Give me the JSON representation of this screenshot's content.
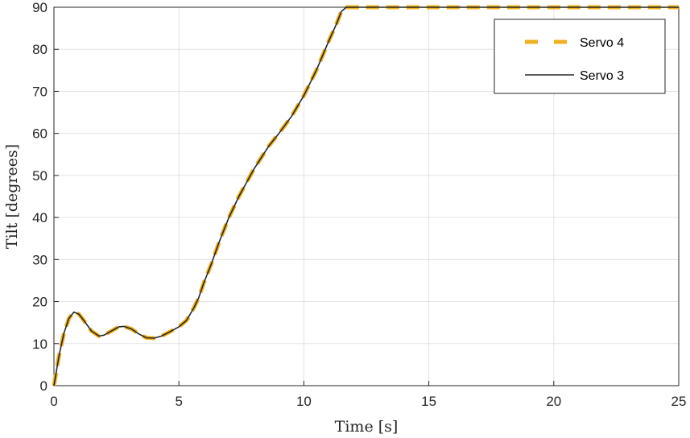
{
  "chart_data": {
    "type": "line",
    "xlabel": "Time [s]",
    "ylabel": "Tilt [degrees]",
    "xlim": [
      0,
      25
    ],
    "ylim": [
      0,
      90
    ],
    "x_ticks": [
      "0",
      "5",
      "10",
      "15",
      "20",
      "25"
    ],
    "y_ticks": [
      "0",
      "10",
      "20",
      "30",
      "40",
      "50",
      "60",
      "70",
      "80",
      "90"
    ],
    "grid": true,
    "legend_position": "top-right",
    "series": [
      {
        "name": "Servo 4",
        "color": "#EDB120",
        "style": "dashed",
        "x": [
          0,
          0.2,
          0.4,
          0.6,
          0.8,
          1.0,
          1.2,
          1.5,
          1.8,
          2.0,
          2.3,
          2.6,
          2.8,
          3.1,
          3.4,
          3.7,
          4.0,
          4.3,
          4.6,
          5.0,
          5.3,
          5.6,
          5.8,
          6.0,
          6.3,
          6.6,
          7.0,
          7.4,
          8.0,
          8.6,
          9.0,
          9.5,
          10.0,
          10.5,
          11.0,
          11.3,
          11.5,
          11.7,
          12,
          14,
          16,
          18,
          20,
          22,
          24,
          25
        ],
        "y": [
          0,
          7,
          12.5,
          16,
          17.5,
          17,
          15.5,
          13,
          11.8,
          12,
          13,
          14,
          14.1,
          13.5,
          12.3,
          11.4,
          11.3,
          11.8,
          12.7,
          14,
          15.5,
          18.5,
          21,
          24.5,
          29,
          34,
          40,
          45,
          51.5,
          57,
          60,
          64,
          69,
          75,
          82,
          86,
          89,
          90,
          90,
          90,
          90,
          90,
          90,
          90,
          90,
          90
        ]
      },
      {
        "name": "Servo 3",
        "color": "#262626",
        "style": "solid",
        "x": [
          0,
          0.2,
          0.4,
          0.6,
          0.8,
          1.0,
          1.2,
          1.5,
          1.8,
          2.0,
          2.3,
          2.6,
          2.8,
          3.1,
          3.4,
          3.7,
          4.0,
          4.3,
          4.6,
          5.0,
          5.3,
          5.6,
          5.8,
          6.0,
          6.3,
          6.6,
          7.0,
          7.4,
          8.0,
          8.6,
          9.0,
          9.5,
          10.0,
          10.5,
          11.0,
          11.3,
          11.5,
          11.7,
          12,
          14,
          16,
          18,
          20,
          22,
          24,
          25
        ],
        "y": [
          0,
          7,
          12.5,
          16,
          17.5,
          17,
          15.5,
          13,
          11.8,
          12,
          13,
          14,
          14.1,
          13.5,
          12.3,
          11.4,
          11.3,
          11.8,
          12.7,
          14,
          15.5,
          18.5,
          21,
          24.5,
          29,
          34,
          40,
          45,
          51.5,
          57,
          60,
          64,
          69,
          75,
          82,
          86,
          89,
          90,
          90,
          90,
          90,
          90,
          90,
          90,
          90,
          90
        ]
      }
    ]
  }
}
